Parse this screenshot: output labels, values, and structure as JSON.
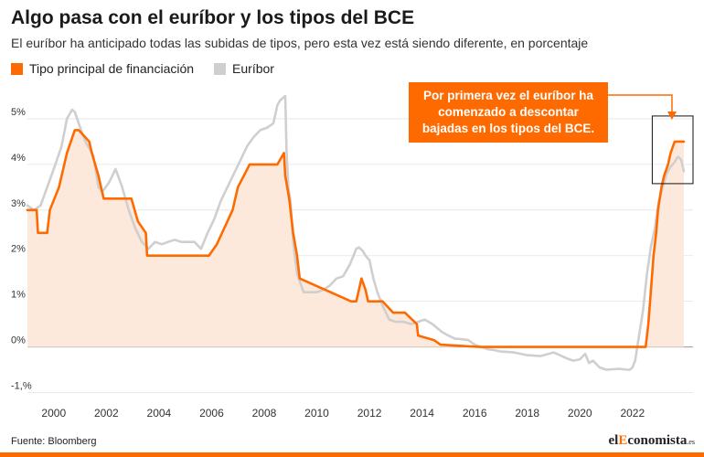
{
  "title": "Algo pasa con el euríbor y los tipos del BCE",
  "subtitle": "El euríbor ha anticipado todas las subidas de tipos, pero esta vez está siendo diferente, en porcentaje",
  "legend": {
    "series1": "Tipo principal de financiación",
    "series2": "Euríbor"
  },
  "annotation": "Por primera vez el euríbor ha comenzado a descontar bajadas en los tipos del BCE.",
  "source": "Fuente: Bloomberg",
  "logo": {
    "a": "el",
    "b": "E",
    "c": "conomista",
    "d": ".es"
  },
  "colors": {
    "ecb": "#ff6a00",
    "euribor": "#cfcfcf",
    "fill": "#fde9dc",
    "grid": "#e3e3e3"
  },
  "chart_data": {
    "type": "line",
    "xlabel": "",
    "ylabel": "",
    "xlim": [
      1999.0,
      2024.3
    ],
    "ylim": [
      -1.05,
      5.7
    ],
    "y_ticks": [
      -1,
      0,
      1,
      2,
      3,
      4,
      5
    ],
    "y_tick_labels": [
      "-1,%",
      "0%",
      "1%",
      "2%",
      "3%",
      "4%",
      "5%"
    ],
    "x_ticks": [
      2000,
      2002,
      2004,
      2006,
      2008,
      2010,
      2012,
      2014,
      2016,
      2018,
      2020,
      2022
    ],
    "x_tick_labels": [
      "2000",
      "2002",
      "2004",
      "2006",
      "2008",
      "2010",
      "2012",
      "2014",
      "2016",
      "2018",
      "2020",
      "2022"
    ],
    "grid": "horizontal",
    "legend_position": "top-left",
    "series": [
      {
        "name": "Tipo principal de financiación",
        "x": [
          1999.0,
          1999.35,
          1999.4,
          1999.75,
          1999.85,
          2000.2,
          2000.5,
          2000.8,
          2000.95,
          2001.35,
          2001.45,
          2001.7,
          2001.9,
          2002.95,
          2003.2,
          2003.5,
          2003.55,
          2005.9,
          2006.2,
          2006.4,
          2006.6,
          2006.8,
          2007.0,
          2007.45,
          2008.5,
          2008.75,
          2008.8,
          2008.95,
          2009.1,
          2009.25,
          2009.35,
          2011.3,
          2011.5,
          2011.7,
          2011.85,
          2011.95,
          2012.5,
          2012.9,
          2013.35,
          2013.8,
          2013.85,
          2014.45,
          2014.7,
          2016.2,
          2022.5,
          2022.6,
          2022.7,
          2022.8,
          2022.9,
          2022.97,
          2023.1,
          2023.2,
          2023.35,
          2023.45,
          2023.6,
          2023.7,
          2023.95
        ],
        "values": [
          3.0,
          3.0,
          2.5,
          2.5,
          3.0,
          3.5,
          4.25,
          4.75,
          4.75,
          4.5,
          4.25,
          3.75,
          3.25,
          3.25,
          2.75,
          2.5,
          2.0,
          2.0,
          2.25,
          2.5,
          2.75,
          3.0,
          3.5,
          4.0,
          4.0,
          4.25,
          3.75,
          3.25,
          2.5,
          2.0,
          1.5,
          1.0,
          1.0,
          1.5,
          1.25,
          1.0,
          1.0,
          0.75,
          0.75,
          0.5,
          0.25,
          0.15,
          0.05,
          0.0,
          0.0,
          0.5,
          1.25,
          2.0,
          2.5,
          3.0,
          3.5,
          3.75,
          4.0,
          4.25,
          4.5,
          4.5,
          4.5
        ]
      },
      {
        "name": "Euríbor",
        "x": [
          1999.0,
          1999.25,
          1999.5,
          1999.75,
          2000.0,
          2000.3,
          2000.5,
          2000.7,
          2000.8,
          2000.95,
          2001.2,
          2001.5,
          2001.7,
          2001.85,
          2002.1,
          2002.35,
          2002.6,
          2002.85,
          2003.1,
          2003.35,
          2003.6,
          2003.85,
          2004.1,
          2004.35,
          2004.6,
          2004.85,
          2005.1,
          2005.35,
          2005.6,
          2005.85,
          2006.1,
          2006.35,
          2006.6,
          2006.85,
          2007.1,
          2007.35,
          2007.6,
          2007.85,
          2008.1,
          2008.35,
          2008.5,
          2008.6,
          2008.7,
          2008.8,
          2008.85,
          2008.92,
          2009.0,
          2009.1,
          2009.25,
          2009.5,
          2009.75,
          2010.0,
          2010.25,
          2010.5,
          2010.75,
          2011.0,
          2011.25,
          2011.5,
          2011.6,
          2011.75,
          2011.85,
          2012.0,
          2012.15,
          2012.3,
          2012.5,
          2012.75,
          2013.0,
          2013.3,
          2013.6,
          2013.85,
          2014.1,
          2014.4,
          2014.75,
          2015.0,
          2015.25,
          2015.5,
          2015.75,
          2016.0,
          2016.25,
          2016.5,
          2016.75,
          2017.0,
          2017.5,
          2018.0,
          2018.5,
          2019.0,
          2019.5,
          2019.75,
          2020.0,
          2020.2,
          2020.35,
          2020.5,
          2020.75,
          2021.0,
          2021.5,
          2021.8,
          2021.9,
          2022.0,
          2022.1,
          2022.25,
          2022.4,
          2022.55,
          2022.7,
          2022.85,
          2023.0,
          2023.15,
          2023.3,
          2023.45,
          2023.6,
          2023.7,
          2023.75,
          2023.85,
          2023.95
        ],
        "values": [
          3.1,
          3.0,
          3.1,
          3.5,
          3.9,
          4.4,
          5.0,
          5.2,
          5.15,
          4.9,
          4.5,
          4.2,
          3.5,
          3.4,
          3.6,
          3.9,
          3.5,
          3.0,
          2.6,
          2.3,
          2.15,
          2.3,
          2.25,
          2.3,
          2.35,
          2.3,
          2.3,
          2.3,
          2.15,
          2.5,
          2.8,
          3.2,
          3.5,
          3.8,
          4.1,
          4.4,
          4.6,
          4.75,
          4.8,
          4.9,
          5.3,
          5.4,
          5.45,
          5.5,
          4.3,
          3.5,
          3.2,
          2.3,
          1.6,
          1.2,
          1.2,
          1.2,
          1.25,
          1.35,
          1.5,
          1.55,
          1.8,
          2.15,
          2.18,
          2.1,
          2.0,
          1.9,
          1.5,
          1.2,
          0.9,
          0.6,
          0.55,
          0.55,
          0.5,
          0.55,
          0.6,
          0.5,
          0.33,
          0.25,
          0.18,
          0.17,
          0.15,
          0.05,
          0.0,
          -0.05,
          -0.07,
          -0.1,
          -0.12,
          -0.18,
          -0.2,
          -0.12,
          -0.25,
          -0.3,
          -0.27,
          -0.15,
          -0.35,
          -0.3,
          -0.45,
          -0.5,
          -0.48,
          -0.5,
          -0.5,
          -0.45,
          -0.3,
          0.25,
          0.8,
          1.6,
          2.2,
          2.6,
          3.2,
          3.5,
          3.8,
          3.95,
          4.05,
          4.15,
          4.16,
          4.1,
          3.85
        ]
      }
    ]
  }
}
